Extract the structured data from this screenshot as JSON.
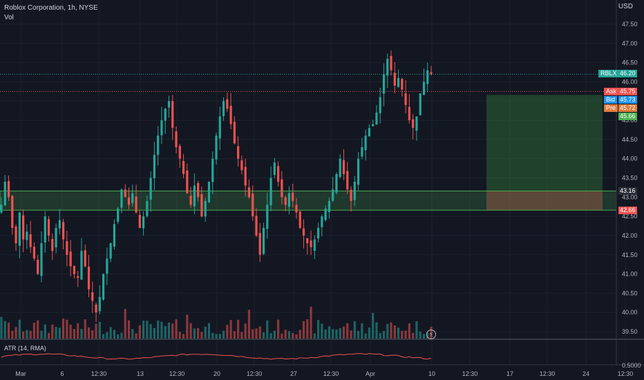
{
  "header": {
    "title": "Roblox Corporation, 1h, NYSE",
    "volume_label": "Vol"
  },
  "currency": "USD",
  "lower_pane": {
    "label": "ATR (14, RMA)",
    "axis_label": "0.5000"
  },
  "price_axis": {
    "ticks": [
      "47.50",
      "47.00",
      "46.50",
      "46.00",
      "45.50",
      "45.00",
      "44.50",
      "44.00",
      "43.50",
      "43.00",
      "42.50",
      "42.00",
      "41.50",
      "41.00",
      "40.50",
      "40.00",
      "39.50"
    ]
  },
  "time_axis": {
    "labels": [
      "Mar",
      "6",
      "12:30",
      "13",
      "12:30",
      "20",
      "12:30",
      "27",
      "12:30",
      "Apr",
      "10",
      "12:30",
      "17",
      "12:30",
      "24",
      "12:30"
    ]
  },
  "price_labels": {
    "symbol": {
      "tag": "RBLX",
      "value": "46.20",
      "color": "#26a69a"
    },
    "ask": {
      "tag": "Ask",
      "value": "45.75",
      "color": "#ef5350"
    },
    "bid": {
      "tag": "Bid",
      "value": "45.73",
      "color": "#2196f3"
    },
    "pre": {
      "tag": "Pre",
      "value": "45.72",
      "color": "#e07c3e"
    },
    "target": {
      "value": "45.66",
      "color": "#4caf50"
    },
    "zone_top": {
      "value": "43.16",
      "color": "#2a2e39"
    },
    "stop": {
      "value": "42.66",
      "color": "#ef5350"
    }
  },
  "colors": {
    "up": "#26a69a",
    "down": "#ef5350",
    "background": "#131722",
    "grid": "#1e222d"
  },
  "icons": {
    "flash": "lightning-icon"
  },
  "chart_data": {
    "type": "candlestick",
    "title": "Roblox Corporation, 1h, NYSE",
    "y_range": [
      39.3,
      47.9
    ],
    "last_price": 46.2,
    "support_zone": [
      42.66,
      43.16
    ],
    "position": {
      "entry": 43.16,
      "target": 45.66,
      "stop": 42.66
    },
    "close_path": [
      42.8,
      43.4,
      43.0,
      42.2,
      41.8,
      42.6,
      41.9,
      42.1,
      41.7,
      41.4,
      41.0,
      41.8,
      42.5,
      42.0,
      41.6,
      42.2,
      42.4,
      41.9,
      41.5,
      41.2,
      41.0,
      40.9,
      41.6,
      41.2,
      40.6,
      40.3,
      40.0,
      40.4,
      41.0,
      41.4,
      41.8,
      42.3,
      42.7,
      43.2,
      43.0,
      42.8,
      43.1,
      42.6,
      42.2,
      42.5,
      42.9,
      43.5,
      44.1,
      44.6,
      45.0,
      45.3,
      45.5,
      44.8,
      44.3,
      44.0,
      43.6,
      43.1,
      42.8,
      43.3,
      43.0,
      42.5,
      42.9,
      43.4,
      44.0,
      44.6,
      45.1,
      45.5,
      45.3,
      44.9,
      44.4,
      44.0,
      43.7,
      43.3,
      43.0,
      42.5,
      42.0,
      41.5,
      42.2,
      42.8,
      43.5,
      43.9,
      43.4,
      43.0,
      42.8,
      43.1,
      42.9,
      42.6,
      42.2,
      42.0,
      41.8,
      41.7,
      41.9,
      42.2,
      42.5,
      42.7,
      42.9,
      43.2,
      43.6,
      44.0,
      43.6,
      43.2,
      42.9,
      43.4,
      44.0,
      44.3,
      44.6,
      44.8,
      44.9,
      45.2,
      45.6,
      46.2,
      46.6,
      46.3,
      45.9,
      46.1,
      45.8,
      45.4,
      45.0,
      44.8,
      45.1,
      45.7,
      46.0,
      46.3,
      46.2
    ]
  }
}
